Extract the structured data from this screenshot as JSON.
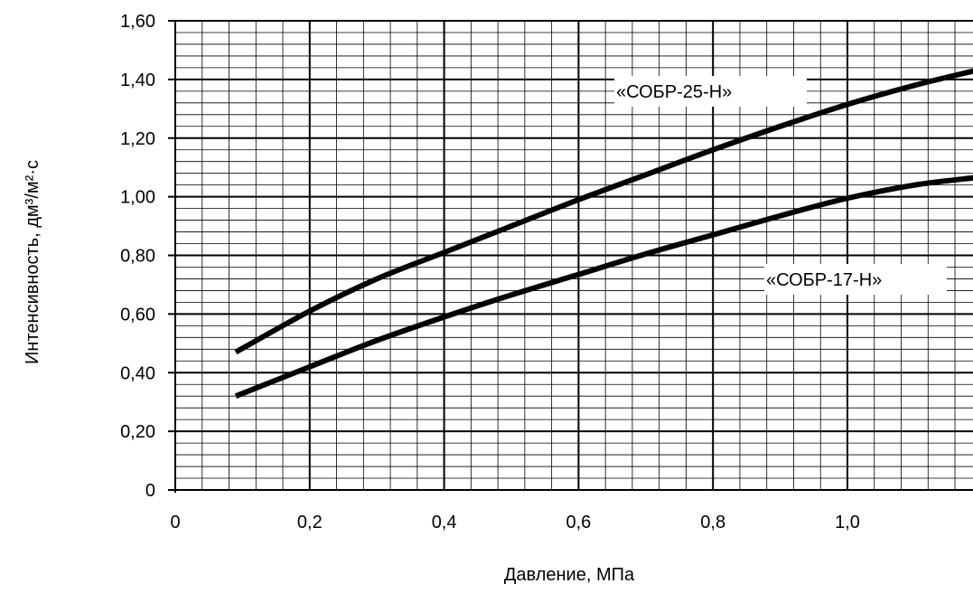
{
  "chart_data": {
    "type": "line",
    "title": "",
    "xlabel": "Давление, МПа",
    "ylabel": "Интенсивность, дм³/м²·с",
    "xlim": [
      0,
      1.2
    ],
    "ylim": [
      0,
      1.6
    ],
    "x_ticks": [
      {
        "value": 0,
        "label": "0"
      },
      {
        "value": 0.2,
        "label": "0,2"
      },
      {
        "value": 0.4,
        "label": "0,4"
      },
      {
        "value": 0.6,
        "label": "0,6"
      },
      {
        "value": 0.8,
        "label": "0,8"
      },
      {
        "value": 1.0,
        "label": "1,0"
      }
    ],
    "y_ticks": [
      {
        "value": 0,
        "label": "0"
      },
      {
        "value": 0.2,
        "label": "0,20"
      },
      {
        "value": 0.4,
        "label": "0,40"
      },
      {
        "value": 0.6,
        "label": "0,60"
      },
      {
        "value": 0.8,
        "label": "0,80"
      },
      {
        "value": 1.0,
        "label": "1,00"
      },
      {
        "value": 1.2,
        "label": "1,20"
      },
      {
        "value": 1.4,
        "label": "1,40"
      },
      {
        "value": 1.6,
        "label": "1,60"
      }
    ],
    "grid": true,
    "minor_grid": {
      "x_step": 0.04,
      "y_step": 0.04
    },
    "series": [
      {
        "name": "«СОБР-25-Н»",
        "color": "#000000",
        "x": [
          0.09,
          0.2,
          0.3,
          0.4,
          0.5,
          0.6,
          0.7,
          0.8,
          0.9,
          1.0,
          1.1,
          1.19
        ],
        "y": [
          0.47,
          0.61,
          0.72,
          0.81,
          0.9,
          0.99,
          1.075,
          1.16,
          1.24,
          1.315,
          1.38,
          1.43
        ]
      },
      {
        "name": "«СОБР-17-Н»",
        "color": "#000000",
        "x": [
          0.09,
          0.2,
          0.3,
          0.4,
          0.5,
          0.6,
          0.7,
          0.8,
          0.9,
          1.0,
          1.1,
          1.19
        ],
        "y": [
          0.32,
          0.42,
          0.51,
          0.59,
          0.665,
          0.735,
          0.805,
          0.87,
          0.935,
          0.995,
          1.04,
          1.065
        ]
      }
    ]
  }
}
